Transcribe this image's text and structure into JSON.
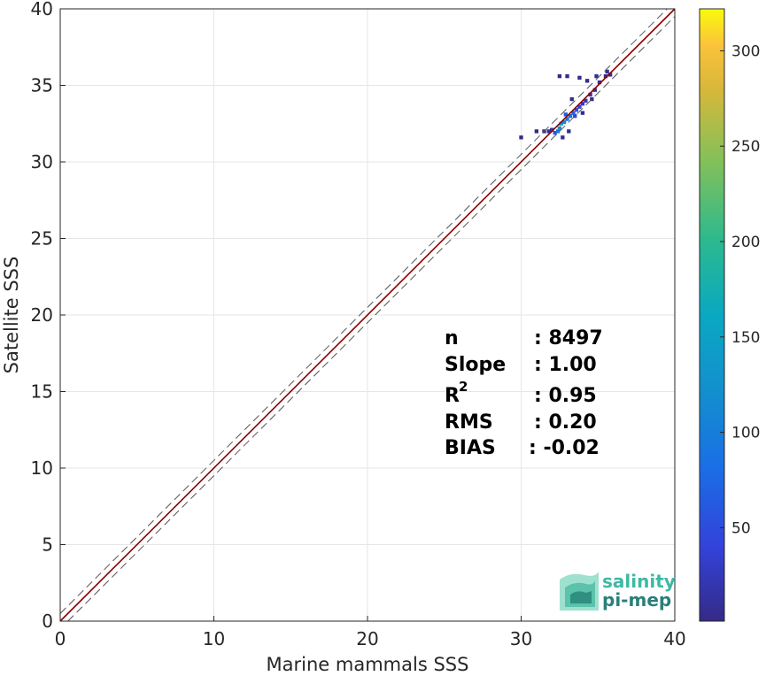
{
  "chart_data": {
    "type": "heatmap",
    "xlabel": "Marine mammals SSS",
    "ylabel": "Satellite SSS",
    "xlim": [
      0,
      40
    ],
    "ylim": [
      0,
      40
    ],
    "x_ticks": [
      "0",
      "10",
      "20",
      "30",
      "40"
    ],
    "y_ticks": [
      "0",
      "5",
      "10",
      "15",
      "20",
      "25",
      "30",
      "35",
      "40"
    ],
    "grid": true,
    "reference_lines": [
      {
        "kind": "identity",
        "slope": 1,
        "offset": 0,
        "color": "#8b0000",
        "style": "solid"
      },
      {
        "kind": "upper-bound",
        "slope": 1,
        "offset": 0.5,
        "color": "#555555",
        "style": "dashed"
      },
      {
        "kind": "lower-bound",
        "slope": 1,
        "offset": -0.5,
        "color": "#555555",
        "style": "dashed"
      }
    ],
    "colorbar": {
      "min": 1,
      "max": 322,
      "ticks": [
        "50",
        "100",
        "150",
        "200",
        "250",
        "300"
      ],
      "colormap": "parula"
    },
    "cells": [
      {
        "x": 32.2,
        "y": 31.9,
        "count": 60
      },
      {
        "x": 32.4,
        "y": 32.0,
        "count": 90
      },
      {
        "x": 32.5,
        "y": 32.2,
        "count": 120
      },
      {
        "x": 32.6,
        "y": 32.5,
        "count": 140
      },
      {
        "x": 32.8,
        "y": 32.6,
        "count": 110
      },
      {
        "x": 33.0,
        "y": 32.8,
        "count": 95
      },
      {
        "x": 33.2,
        "y": 33.0,
        "count": 80
      },
      {
        "x": 33.4,
        "y": 33.2,
        "count": 70
      },
      {
        "x": 33.6,
        "y": 33.4,
        "count": 55
      },
      {
        "x": 33.8,
        "y": 33.6,
        "count": 40
      },
      {
        "x": 34.0,
        "y": 33.8,
        "count": 30
      },
      {
        "x": 34.2,
        "y": 34.0,
        "count": 22
      },
      {
        "x": 34.5,
        "y": 34.4,
        "count": 15
      },
      {
        "x": 34.8,
        "y": 34.7,
        "count": 12
      },
      {
        "x": 35.1,
        "y": 35.2,
        "count": 10
      },
      {
        "x": 35.5,
        "y": 35.6,
        "count": 8
      },
      {
        "x": 35.8,
        "y": 35.7,
        "count": 6
      },
      {
        "x": 32.0,
        "y": 32.1,
        "count": 20
      },
      {
        "x": 31.8,
        "y": 32.0,
        "count": 8
      },
      {
        "x": 31.5,
        "y": 32.0,
        "count": 3
      },
      {
        "x": 30.0,
        "y": 31.6,
        "count": 1
      },
      {
        "x": 31.0,
        "y": 32.0,
        "count": 2
      },
      {
        "x": 33.3,
        "y": 34.1,
        "count": 4
      },
      {
        "x": 34.3,
        "y": 35.3,
        "count": 3
      },
      {
        "x": 32.5,
        "y": 35.6,
        "count": 1
      },
      {
        "x": 33.0,
        "y": 35.6,
        "count": 1
      },
      {
        "x": 33.8,
        "y": 35.5,
        "count": 1
      },
      {
        "x": 34.6,
        "y": 34.1,
        "count": 5
      },
      {
        "x": 32.7,
        "y": 31.6,
        "count": 4
      },
      {
        "x": 33.1,
        "y": 32.0,
        "count": 6
      },
      {
        "x": 34.0,
        "y": 33.2,
        "count": 8
      },
      {
        "x": 33.5,
        "y": 33.0,
        "count": 45
      },
      {
        "x": 32.9,
        "y": 33.1,
        "count": 65
      },
      {
        "x": 34.9,
        "y": 35.6,
        "count": 5
      },
      {
        "x": 35.6,
        "y": 35.9,
        "count": 9
      }
    ]
  },
  "stats": {
    "n_label": "n",
    "n_value": ": 8497",
    "slope_label": "Slope",
    "slope_value": ": 1.00",
    "r2_label": "R",
    "r2_sup": "2",
    "r2_value": ": 0.95",
    "rms_label": "RMS",
    "rms_value": ": 0.20",
    "bias_label": "BIAS",
    "bias_value": ": -0.02"
  },
  "logo": {
    "line1": "salinity",
    "line2": "pi-mep"
  }
}
